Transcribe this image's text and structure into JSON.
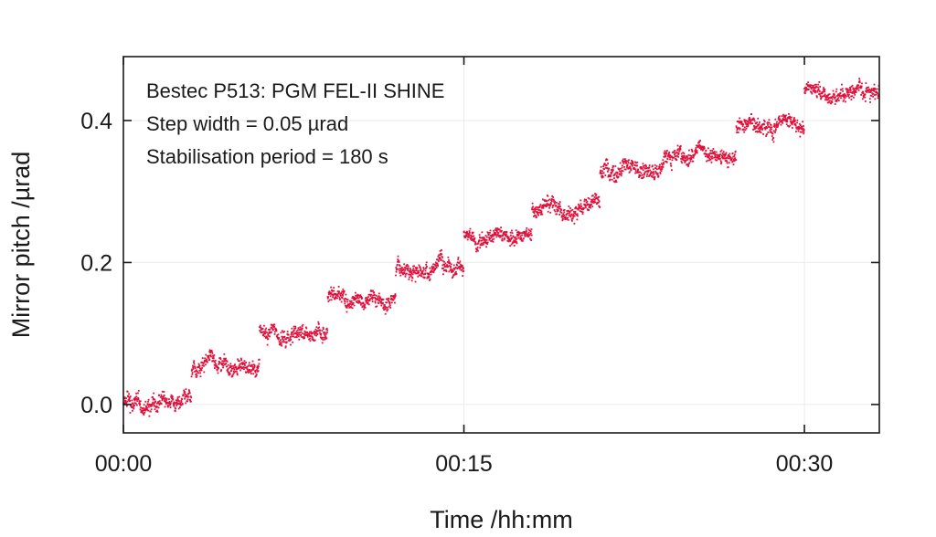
{
  "chart_data": {
    "type": "scatter",
    "xlabel": "Time /hh:mm",
    "ylabel": "Mirror pitch /µrad",
    "xlim_minutes": [
      0,
      33.3
    ],
    "ylim": [
      -0.04,
      0.49
    ],
    "x_ticks": [
      {
        "minutes": 0,
        "label": "00:00"
      },
      {
        "minutes": 15,
        "label": "00:15"
      },
      {
        "minutes": 30,
        "label": "00:30"
      }
    ],
    "y_ticks": [
      {
        "value": 0.0,
        "label": "0.0"
      },
      {
        "value": 0.2,
        "label": "0.2"
      },
      {
        "value": 0.4,
        "label": "0.4"
      }
    ],
    "grid": true,
    "annotations": [
      "Bestec P513: PGM FEL-II SHINE",
      "Step width = 0.05 µrad",
      "Stabilisation period = 180 s"
    ],
    "series": [
      {
        "color": "#e0103a",
        "step_interval_minutes": 3,
        "step_size": 0.05,
        "noise_amplitude": 0.012,
        "levels": [
          {
            "start_min": 0.0,
            "end_min": 3.0,
            "value": 0.0
          },
          {
            "start_min": 3.0,
            "end_min": 6.0,
            "value": 0.05
          },
          {
            "start_min": 6.0,
            "end_min": 9.0,
            "value": 0.1
          },
          {
            "start_min": 9.0,
            "end_min": 12.0,
            "value": 0.15
          },
          {
            "start_min": 12.0,
            "end_min": 15.0,
            "value": 0.19
          },
          {
            "start_min": 15.0,
            "end_min": 18.0,
            "value": 0.24
          },
          {
            "start_min": 18.0,
            "end_min": 21.0,
            "value": 0.28
          },
          {
            "start_min": 21.0,
            "end_min": 24.0,
            "value": 0.33
          },
          {
            "start_min": 24.0,
            "end_min": 27.0,
            "value": 0.35
          },
          {
            "start_min": 27.0,
            "end_min": 30.0,
            "value": 0.39
          },
          {
            "start_min": 30.0,
            "end_min": 33.3,
            "value": 0.44
          }
        ]
      }
    ]
  }
}
